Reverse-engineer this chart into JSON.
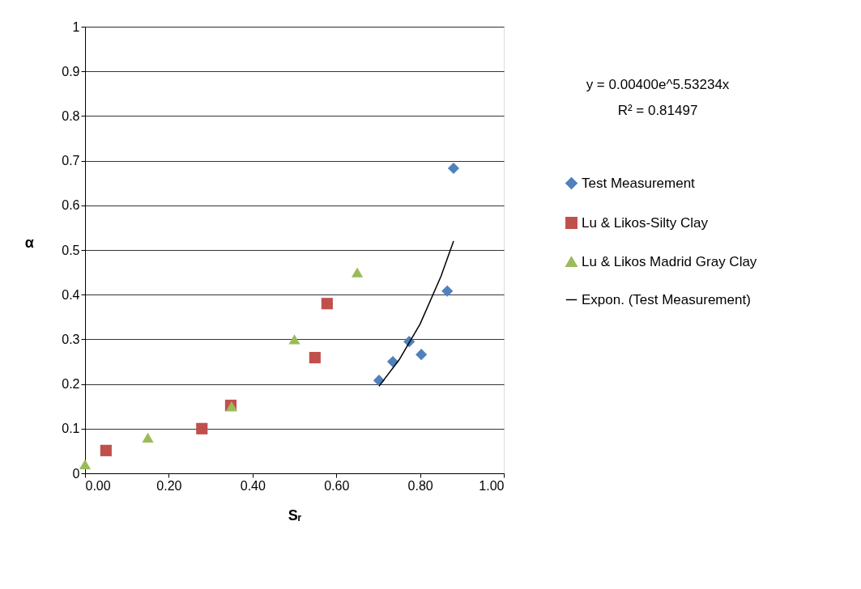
{
  "chart_data": {
    "type": "scatter",
    "xlabel": "Sᵣ",
    "ylabel": "α",
    "series": [
      {
        "name": "Test Measurement",
        "marker": "diamond",
        "color": "#4f81bd",
        "x": [
          0.702,
          0.735,
          0.774,
          0.803,
          0.865,
          0.88
        ],
        "values": [
          0.208,
          0.25,
          0.295,
          0.266,
          0.408,
          0.683
        ]
      },
      {
        "name": "Lu & Likos-Silty Clay",
        "marker": "square",
        "color": "#c0504d",
        "x": [
          0.05,
          0.279,
          0.348,
          0.549,
          0.578
        ],
        "values": [
          0.051,
          0.1,
          0.152,
          0.259,
          0.38
        ]
      },
      {
        "name": "Lu & Likos Madrid Gray Clay",
        "marker": "triangle",
        "color": "#9bbb59",
        "x": [
          0.0,
          0.15,
          0.35,
          0.5,
          0.65
        ],
        "values": [
          0.02,
          0.08,
          0.15,
          0.3,
          0.45
        ]
      },
      {
        "name": "Expon. (Test Measurement)",
        "type": "line",
        "marker": "none",
        "color": "#000000",
        "x": [
          0.702,
          0.75,
          0.8,
          0.85,
          0.88
        ],
        "values": [
          0.195,
          0.254,
          0.334,
          0.441,
          0.52
        ]
      }
    ],
    "xlim": [
      0,
      1
    ],
    "ylim": [
      0,
      1
    ],
    "xticks": [
      {
        "value": 0,
        "label": "0.00"
      },
      {
        "value": 0.2,
        "label": "0.20"
      },
      {
        "value": 0.4,
        "label": "0.40"
      },
      {
        "value": 0.6,
        "label": "0.60"
      },
      {
        "value": 0.8,
        "label": "0.80"
      },
      {
        "value": 1,
        "label": "1.00"
      }
    ],
    "yticks": [
      0,
      0.1,
      0.2,
      0.3,
      0.4,
      0.5,
      0.6,
      0.7,
      0.8,
      0.9,
      1
    ],
    "annotations": [
      "y = 0.00400e^5.53234x",
      "R² = 0.81497"
    ],
    "grid": "y",
    "legend": "right"
  }
}
